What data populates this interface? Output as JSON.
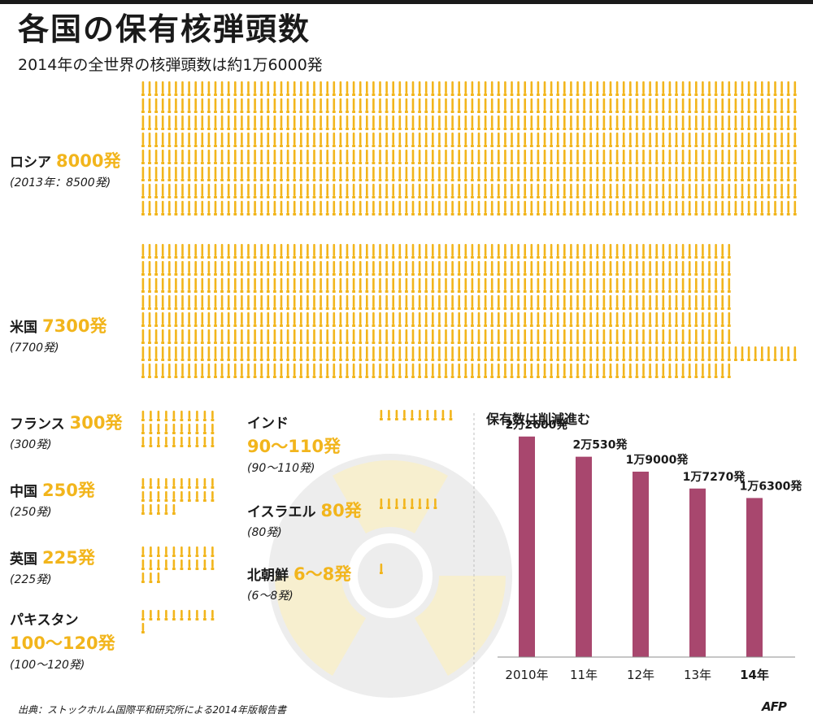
{
  "title": "各国の保有核弾頭数",
  "subtitle": "2014年の全世界の核弾頭数は約1万6000発",
  "colors": {
    "warhead": "#f2b51c",
    "bar": "#a8476e",
    "radiation_symbol": "#ededed"
  },
  "countries": {
    "russia": {
      "name": "ロシア",
      "value": "8000発",
      "prev": "(2013年：8500発)",
      "count": 8000
    },
    "usa": {
      "name": "米国",
      "value": "7300発",
      "prev": "(7700発)",
      "count": 7300
    },
    "france": {
      "name": "フランス",
      "value": "300発",
      "prev": "(300発)",
      "count": 300
    },
    "china": {
      "name": "中国",
      "value": "250発",
      "prev": "(250発)",
      "count": 250
    },
    "uk": {
      "name": "英国",
      "value": "225発",
      "prev": "(225発)",
      "count": 225
    },
    "pakistan": {
      "name": "パキスタン",
      "value": "100〜120発",
      "prev": "(100〜120発)",
      "count": 110
    },
    "india": {
      "name": "インド",
      "value": "90〜110発",
      "prev": "(90〜110発)",
      "count": 100
    },
    "israel": {
      "name": "イスラエル",
      "value": "80発",
      "prev": "(80発)",
      "count": 80
    },
    "nkorea": {
      "name": "北朝鮮",
      "value": "6〜8発",
      "prev": "(6〜8発)",
      "count": 7
    }
  },
  "chart_data": {
    "type": "bar",
    "title": "保有数は削減進む",
    "categories": [
      "2010年",
      "11年",
      "12年",
      "13年",
      "14年"
    ],
    "values": [
      22600,
      20530,
      19000,
      17270,
      16300
    ],
    "value_labels": [
      "2万2600発",
      "2万530発",
      "1万9000発",
      "1万7270発",
      "1万6300発"
    ],
    "ylim": [
      0,
      24000
    ]
  },
  "source": "出典：ストックホルム国際平和研究所による2014年版報告書",
  "logo": "AFP"
}
